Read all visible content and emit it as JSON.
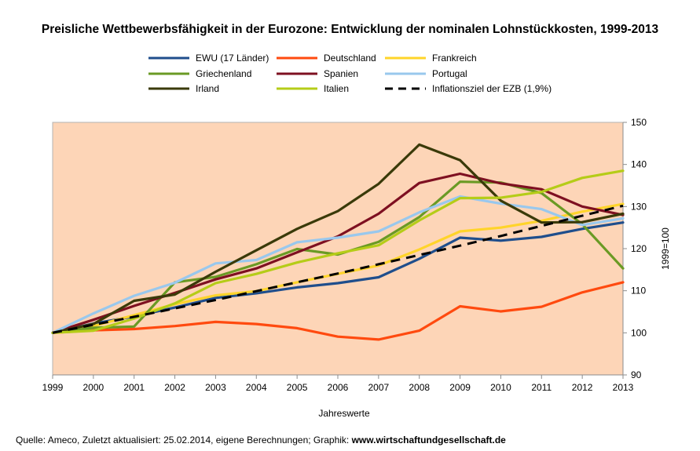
{
  "chart_data": {
    "type": "line",
    "title": "Preisliche Wettbewerbsfähigkeit in der Eurozone: Entwicklung der nominalen Lohnstückkosten, 1999-2013",
    "xlabel": "Jahreswerte",
    "ylabel": "1999=100",
    "x": [
      "1999",
      "2000",
      "2001",
      "2002",
      "2003",
      "2004",
      "2005",
      "2006",
      "2007",
      "2008",
      "2009",
      "2010",
      "2011",
      "2012",
      "2013"
    ],
    "ylim": [
      90,
      150
    ],
    "yticks": [
      "90",
      "100",
      "110",
      "120",
      "130",
      "140",
      "150"
    ],
    "grid": false,
    "background": "#fdd5b7",
    "legend_position": "top",
    "series": [
      {
        "name": "EWU (17 Länder)",
        "color": "#1f4e8c",
        "dash": false,
        "values": [
          100,
          102.2,
          103.9,
          106.0,
          108.3,
          109.4,
          110.8,
          111.8,
          113.2,
          117.6,
          122.6,
          121.9,
          122.8,
          124.7,
          126.2
        ]
      },
      {
        "name": "Deutschland",
        "color": "#ff4a0f",
        "dash": false,
        "values": [
          100,
          100.6,
          100.9,
          101.6,
          102.6,
          102.1,
          101.1,
          99.1,
          98.4,
          100.5,
          106.3,
          105.1,
          106.2,
          109.6,
          112.0
        ]
      },
      {
        "name": "Frankreich",
        "color": "#ffd42a",
        "dash": false,
        "values": [
          100,
          101.6,
          104.2,
          106.8,
          108.9,
          109.9,
          112.0,
          114.0,
          116.0,
          119.8,
          124.1,
          125.0,
          126.6,
          128.8,
          130.6
        ]
      },
      {
        "name": "Griechenland",
        "color": "#6a9a24",
        "dash": false,
        "values": [
          100,
          101.2,
          101.5,
          112.0,
          113.3,
          116.3,
          119.9,
          118.6,
          121.6,
          127.5,
          135.9,
          135.7,
          133.2,
          125.8,
          115.3
        ]
      },
      {
        "name": "Spanien",
        "color": "#7e1021",
        "dash": false,
        "values": [
          100,
          103.1,
          106.4,
          109.5,
          112.7,
          115.3,
          119.1,
          122.9,
          128.3,
          135.6,
          137.8,
          135.5,
          134.1,
          130.0,
          128.0
        ]
      },
      {
        "name": "Portugal",
        "color": "#99c8ed",
        "dash": false,
        "values": [
          100,
          104.6,
          108.8,
          111.9,
          116.5,
          117.3,
          121.5,
          122.6,
          124.1,
          128.6,
          132.4,
          130.7,
          129.4,
          125.6,
          127.2
        ]
      },
      {
        "name": "Irland",
        "color": "#3a3a09",
        "dash": false,
        "values": [
          100,
          102.1,
          107.6,
          109.1,
          114.5,
          119.6,
          124.7,
          128.9,
          135.4,
          144.7,
          141.0,
          131.4,
          126.2,
          126.3,
          128.3
        ]
      },
      {
        "name": "Italien",
        "color": "#b5cc18",
        "dash": false,
        "values": [
          100,
          100.5,
          103.4,
          107.0,
          111.8,
          114.0,
          116.7,
          118.9,
          120.8,
          126.7,
          132.0,
          132.1,
          133.5,
          136.8,
          138.5
        ]
      },
      {
        "name": "Inflationsziel der EZB (1,9%)",
        "color": "#000000",
        "dash": true,
        "values": [
          100,
          101.9,
          103.8,
          105.8,
          107.8,
          109.9,
          112.0,
          114.1,
          116.3,
          118.5,
          120.7,
          123.0,
          125.4,
          127.8,
          130.2
        ]
      }
    ]
  },
  "source": {
    "text": "Quelle: Ameco, Zuletzt aktualisiert: 25.02.2014, eigene Berechnungen; Graphik: ",
    "link": "www.wirtschaftundgesellschaft.de"
  }
}
